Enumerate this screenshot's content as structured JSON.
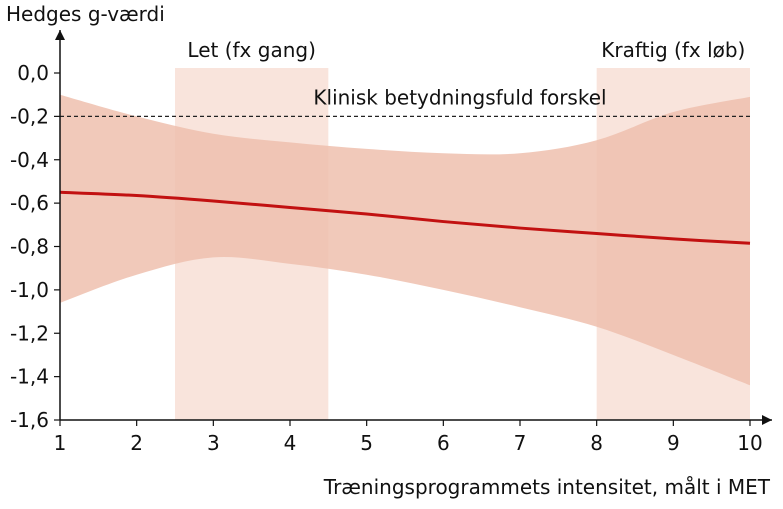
{
  "chart_data": {
    "type": "line",
    "ylabel": "Hedges g-værdi",
    "xlabel": "Træningsprogrammets intensitet, målt i MET",
    "xlim": [
      1,
      10
    ],
    "ylim": [
      -1.6,
      0.0
    ],
    "x_ticks": [
      "1",
      "2",
      "3",
      "4",
      "5",
      "6",
      "7",
      "8",
      "9",
      "10"
    ],
    "y_ticks": [
      "0,0",
      "-0,2",
      "-0,4",
      "-0,6",
      "-0,8",
      "-1,0",
      "-1,2",
      "-1,4",
      "-1,6"
    ],
    "series": [
      {
        "x": [
          1,
          2,
          3,
          4,
          5,
          6,
          7,
          8,
          9,
          10
        ],
        "values": [
          -0.55,
          -0.565,
          -0.59,
          -0.62,
          -0.65,
          -0.685,
          -0.715,
          -0.74,
          -0.765,
          -0.785
        ],
        "ci_lower": [
          -1.06,
          -0.93,
          -0.85,
          -0.88,
          -0.93,
          -1.0,
          -1.08,
          -1.17,
          -1.3,
          -1.44
        ],
        "ci_upper": [
          -0.1,
          -0.2,
          -0.28,
          -0.32,
          -0.35,
          -0.37,
          -0.37,
          -0.31,
          -0.18,
          -0.11
        ],
        "color": "#c21111",
        "band_color": "#efc0ae"
      }
    ],
    "reference_line": {
      "y": -0.2,
      "label": "Klinisk betydningsfuld forskel"
    },
    "zones": [
      {
        "label": "Let (fx gang)",
        "x_start": 2.5,
        "x_end": 4.5
      },
      {
        "label": "Kraftig (fx løb)",
        "x_start": 8.0,
        "x_end": 10.0
      }
    ],
    "zone_color": "#f9e4dc",
    "grid": false
  }
}
